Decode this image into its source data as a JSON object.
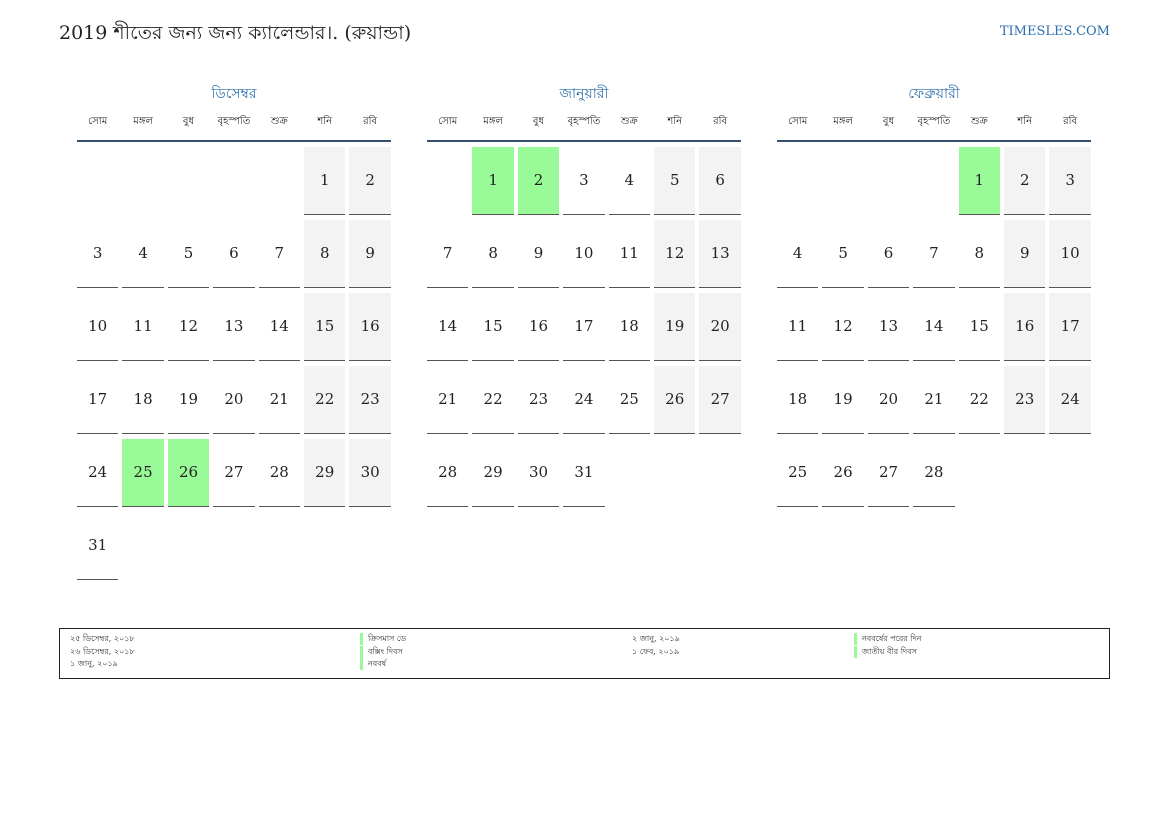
{
  "header": {
    "title": "2019 শীতের জন্য জন্য ক্যালেন্ডার।. (রুয়ান্ডা)",
    "site": "TIMESLES.COM"
  },
  "weekdays": [
    "সোম",
    "মঙ্গল",
    "বুধ",
    "বৃহস্পতি",
    "শুক্র",
    "শনি",
    "রবি"
  ],
  "months": [
    {
      "name": "ডিসেম্বর",
      "weeks": [
        [
          "",
          "",
          "",
          "",
          "",
          "1",
          "2"
        ],
        [
          "3",
          "4",
          "5",
          "6",
          "7",
          "8",
          "9"
        ],
        [
          "10",
          "11",
          "12",
          "13",
          "14",
          "15",
          "16"
        ],
        [
          "17",
          "18",
          "19",
          "20",
          "21",
          "22",
          "23"
        ],
        [
          "24",
          "25",
          "26",
          "27",
          "28",
          "29",
          "30"
        ],
        [
          "31",
          "",
          "",
          "",
          "",
          "",
          ""
        ]
      ],
      "holidays": [
        "25",
        "26"
      ]
    },
    {
      "name": "জানুয়ারী",
      "weeks": [
        [
          "",
          "1",
          "2",
          "3",
          "4",
          "5",
          "6"
        ],
        [
          "7",
          "8",
          "9",
          "10",
          "11",
          "12",
          "13"
        ],
        [
          "14",
          "15",
          "16",
          "17",
          "18",
          "19",
          "20"
        ],
        [
          "21",
          "22",
          "23",
          "24",
          "25",
          "26",
          "27"
        ],
        [
          "28",
          "29",
          "30",
          "31",
          "",
          "",
          ""
        ]
      ],
      "holidays": [
        "1",
        "2"
      ]
    },
    {
      "name": "ফেব্রুয়ারী",
      "weeks": [
        [
          "",
          "",
          "",
          "",
          "1",
          "2",
          "3"
        ],
        [
          "4",
          "5",
          "6",
          "7",
          "8",
          "9",
          "10"
        ],
        [
          "11",
          "12",
          "13",
          "14",
          "15",
          "16",
          "17"
        ],
        [
          "18",
          "19",
          "20",
          "21",
          "22",
          "23",
          "24"
        ],
        [
          "25",
          "26",
          "27",
          "28",
          "",
          "",
          ""
        ]
      ],
      "holidays": [
        "1"
      ]
    }
  ],
  "holiday_list": [
    {
      "date": "২৫ ডিসেম্বর, ২০১৮",
      "name": "ক্রিসমাস ডে"
    },
    {
      "date": "২৬ ডিসেম্বর, ২০১৮",
      "name": "বক্সিং দিবস"
    },
    {
      "date": "১ জানু, ২০১৯",
      "name": "নববর্ষ"
    },
    {
      "date": "২ জানু, ২০১৯",
      "name": "নববর্ষের পরের দিন"
    },
    {
      "date": "১ ফেব, ২০১৯",
      "name": "জাতীয় বীর দিবস"
    }
  ],
  "colors": {
    "holiday": "#98fb98",
    "weekend": "#f3f3f3",
    "accent": "#2e6fad",
    "rule": "#34506e"
  }
}
